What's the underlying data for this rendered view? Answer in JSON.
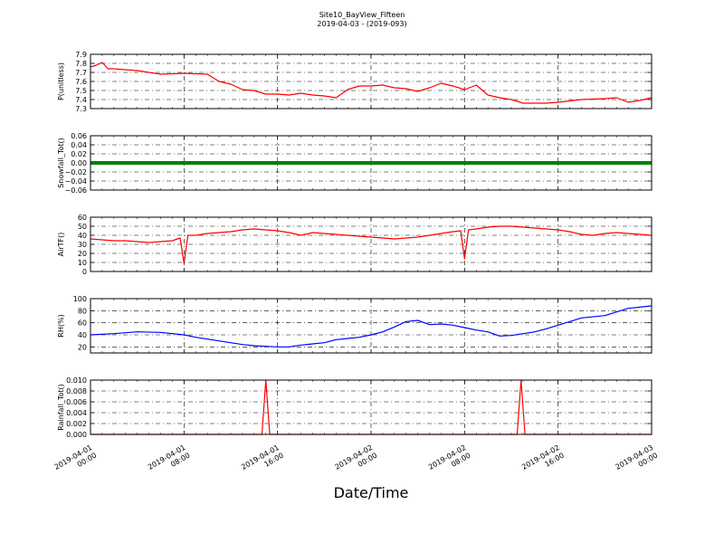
{
  "figure": {
    "title_line1": "Site10_BayView_Fifteen",
    "title_line2": "2019-04-03 - (2019-093)",
    "xlabel": "Date/Time"
  },
  "x_axis": {
    "ticks": [
      {
        "line1": "2019-04-01",
        "line2": "00:00"
      },
      {
        "line1": "2019-04-01",
        "line2": "08:00"
      },
      {
        "line1": "2019-04-01",
        "line2": "16:00"
      },
      {
        "line1": "2019-04-02",
        "line2": "00:00"
      },
      {
        "line1": "2019-04-02",
        "line2": "08:00"
      },
      {
        "line1": "2019-04-02",
        "line2": "16:00"
      },
      {
        "line1": "2019-04-03",
        "line2": "00:00"
      }
    ]
  },
  "chart_data": [
    {
      "type": "line",
      "ylabel": "P(unitless)",
      "ylim": [
        7.3,
        7.9
      ],
      "yticks": [
        "7.3",
        "7.4",
        "7.5",
        "7.6",
        "7.7",
        "7.8",
        "7.9"
      ],
      "grid": true,
      "xlim": [
        "2019-04-01 00:00",
        "2019-04-03 00:00"
      ],
      "color": "#ff0000",
      "x": [
        "2019-04-01 00:00",
        "2019-04-01 00:30",
        "2019-04-01 01:00",
        "2019-04-01 01:30",
        "2019-04-01 02:00",
        "2019-04-01 04:00",
        "2019-04-01 06:00",
        "2019-04-01 08:00",
        "2019-04-01 10:00",
        "2019-04-01 11:00",
        "2019-04-01 12:00",
        "2019-04-01 13:00",
        "2019-04-01 14:00",
        "2019-04-01 15:00",
        "2019-04-01 16:00",
        "2019-04-01 17:00",
        "2019-04-01 18:00",
        "2019-04-01 19:00",
        "2019-04-01 20:00",
        "2019-04-01 21:00",
        "2019-04-01 22:00",
        "2019-04-01 23:00",
        "2019-04-02 00:00",
        "2019-04-02 01:00",
        "2019-04-02 02:00",
        "2019-04-02 03:00",
        "2019-04-02 04:00",
        "2019-04-02 05:00",
        "2019-04-02 06:00",
        "2019-04-02 07:00",
        "2019-04-02 08:00",
        "2019-04-02 09:00",
        "2019-04-02 10:00",
        "2019-04-02 11:00",
        "2019-04-02 12:00",
        "2019-04-02 13:00",
        "2019-04-02 14:00",
        "2019-04-02 15:00",
        "2019-04-02 16:00",
        "2019-04-02 18:00",
        "2019-04-02 20:00",
        "2019-04-02 21:00",
        "2019-04-02 22:00",
        "2019-04-02 23:00",
        "2019-04-03 00:00"
      ],
      "values": [
        7.76,
        7.78,
        7.81,
        7.74,
        7.74,
        7.72,
        7.68,
        7.69,
        7.68,
        7.6,
        7.57,
        7.51,
        7.5,
        7.46,
        7.46,
        7.45,
        7.47,
        7.45,
        7.44,
        7.42,
        7.51,
        7.55,
        7.55,
        7.56,
        7.53,
        7.52,
        7.49,
        7.53,
        7.58,
        7.55,
        7.51,
        7.56,
        7.45,
        7.42,
        7.4,
        7.36,
        7.36,
        7.36,
        7.37,
        7.4,
        7.41,
        7.42,
        7.37,
        7.39,
        7.42
      ]
    },
    {
      "type": "line",
      "ylabel": "Snowfall_Tot()",
      "ylim": [
        -0.06,
        0.06
      ],
      "yticks": [
        "−0.06",
        "−0.04",
        "−0.02",
        "0.00",
        "0.02",
        "0.04",
        "0.06"
      ],
      "grid": true,
      "xlim": [
        "2019-04-01 00:00",
        "2019-04-03 00:00"
      ],
      "color": "#008000",
      "x": [
        "2019-04-01 00:00",
        "2019-04-03 00:00"
      ],
      "values": [
        0.0,
        0.0
      ]
    },
    {
      "type": "line",
      "ylabel": "AirTF()",
      "ylim": [
        0,
        60
      ],
      "yticks": [
        "0",
        "10",
        "20",
        "30",
        "40",
        "50",
        "60"
      ],
      "grid": true,
      "xlim": [
        "2019-04-01 00:00",
        "2019-04-03 00:00"
      ],
      "color": "#ff0000",
      "x": [
        "2019-04-01 00:00",
        "2019-04-01 01:00",
        "2019-04-01 02:00",
        "2019-04-01 03:00",
        "2019-04-01 04:00",
        "2019-04-01 05:00",
        "2019-04-01 06:00",
        "2019-04-01 07:00",
        "2019-04-01 07:40",
        "2019-04-01 08:00",
        "2019-04-01 08:20",
        "2019-04-01 09:00",
        "2019-04-01 10:00",
        "2019-04-01 11:00",
        "2019-04-01 12:00",
        "2019-04-01 13:00",
        "2019-04-01 14:00",
        "2019-04-01 15:00",
        "2019-04-01 16:00",
        "2019-04-01 17:00",
        "2019-04-01 18:00",
        "2019-04-01 19:00",
        "2019-04-01 20:00",
        "2019-04-01 21:00",
        "2019-04-01 22:00",
        "2019-04-01 23:00",
        "2019-04-02 00:00",
        "2019-04-02 01:00",
        "2019-04-02 02:00",
        "2019-04-02 03:00",
        "2019-04-02 04:00",
        "2019-04-02 05:00",
        "2019-04-02 06:00",
        "2019-04-02 07:00",
        "2019-04-02 07:40",
        "2019-04-02 08:00",
        "2019-04-02 08:20",
        "2019-04-02 09:00",
        "2019-04-02 10:00",
        "2019-04-02 11:00",
        "2019-04-02 12:00",
        "2019-04-02 13:00",
        "2019-04-02 14:00",
        "2019-04-02 15:00",
        "2019-04-02 16:00",
        "2019-04-02 17:00",
        "2019-04-02 18:00",
        "2019-04-02 19:00",
        "2019-04-02 20:00",
        "2019-04-02 21:00",
        "2019-04-02 22:00",
        "2019-04-02 23:00",
        "2019-04-03 00:00"
      ],
      "values": [
        36,
        35,
        34,
        34,
        33,
        32,
        33,
        34,
        37,
        9,
        40,
        40,
        42,
        43,
        44,
        46,
        47,
        46,
        45,
        43,
        40,
        43,
        42,
        41,
        40,
        39,
        38,
        37,
        36,
        37,
        38,
        40,
        42,
        44,
        45,
        14,
        46,
        47,
        49,
        50,
        50,
        49,
        48,
        47,
        46,
        44,
        41,
        40,
        42,
        43,
        42,
        41,
        40
      ]
    },
    {
      "type": "line",
      "ylabel": "RH(%)",
      "ylim": [
        10,
        100
      ],
      "yticks": [
        "20",
        "40",
        "60",
        "80",
        "100"
      ],
      "grid": true,
      "xlim": [
        "2019-04-01 00:00",
        "2019-04-03 00:00"
      ],
      "color": "#0000ff",
      "x": [
        "2019-04-01 00:00",
        "2019-04-01 02:00",
        "2019-04-01 04:00",
        "2019-04-01 06:00",
        "2019-04-01 08:00",
        "2019-04-01 09:00",
        "2019-04-01 10:00",
        "2019-04-01 11:00",
        "2019-04-01 12:00",
        "2019-04-01 13:00",
        "2019-04-01 14:00",
        "2019-04-01 15:00",
        "2019-04-01 16:00",
        "2019-04-01 17:00",
        "2019-04-01 18:00",
        "2019-04-01 19:00",
        "2019-04-01 20:00",
        "2019-04-01 21:00",
        "2019-04-01 22:00",
        "2019-04-01 23:00",
        "2019-04-02 00:00",
        "2019-04-02 01:00",
        "2019-04-02 02:00",
        "2019-04-02 03:00",
        "2019-04-02 04:00",
        "2019-04-02 05:00",
        "2019-04-02 06:00",
        "2019-04-02 07:00",
        "2019-04-02 08:00",
        "2019-04-02 09:00",
        "2019-04-02 10:00",
        "2019-04-02 11:00",
        "2019-04-02 12:00",
        "2019-04-02 13:00",
        "2019-04-02 14:00",
        "2019-04-02 15:00",
        "2019-04-02 16:00",
        "2019-04-02 18:00",
        "2019-04-02 20:00",
        "2019-04-02 22:00",
        "2019-04-03 00:00"
      ],
      "values": [
        40,
        42,
        45,
        44,
        40,
        36,
        33,
        30,
        27,
        24,
        22,
        21,
        20,
        20,
        23,
        25,
        27,
        32,
        34,
        36,
        40,
        45,
        53,
        62,
        64,
        57,
        58,
        56,
        52,
        48,
        45,
        38,
        39,
        42,
        45,
        50,
        56,
        68,
        72,
        84,
        88
      ]
    },
    {
      "type": "line",
      "ylabel": "Rainfall_Tot()",
      "ylim": [
        0,
        0.01
      ],
      "yticks": [
        "0.000",
        "0.002",
        "0.004",
        "0.006",
        "0.008",
        "0.010"
      ],
      "grid": true,
      "xlim": [
        "2019-04-01 00:00",
        "2019-04-03 00:00"
      ],
      "color": "#ff0000",
      "x": [
        "2019-04-01 00:00",
        "2019-04-01 14:40",
        "2019-04-01 15:00",
        "2019-04-01 15:20",
        "2019-04-02 12:30",
        "2019-04-02 12:50",
        "2019-04-02 13:10",
        "2019-04-03 00:00"
      ],
      "values": [
        0,
        0,
        0.01,
        0,
        0,
        0.01,
        0,
        0
      ]
    }
  ]
}
